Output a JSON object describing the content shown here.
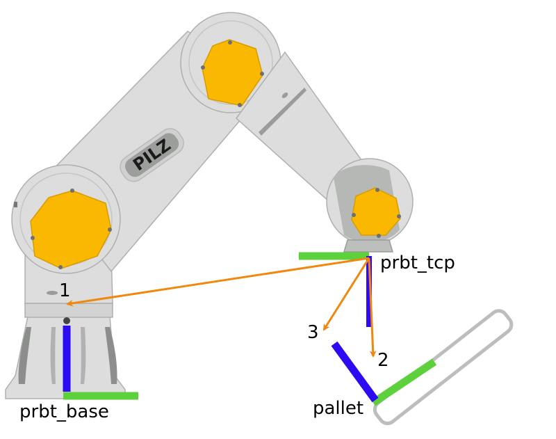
{
  "brand": {
    "logo_text": "PILZ"
  },
  "frames": {
    "base": "prbt_base",
    "tcp": "prbt_tcp",
    "pallet": "pallet"
  },
  "vectors": {
    "v1": "1",
    "v2": "2",
    "v3": "3"
  },
  "colors": {
    "robot_body": "#dcdddc",
    "robot_outline": "#aeb0ae",
    "joint_cap": "#fbb800",
    "axis_x": "#5cd13c",
    "axis_z": "#2d0af4",
    "vector": "#f0870f",
    "pallet_outline": "#bdbdbd"
  },
  "icons": {
    "arrowhead": "arrowhead-icon"
  }
}
